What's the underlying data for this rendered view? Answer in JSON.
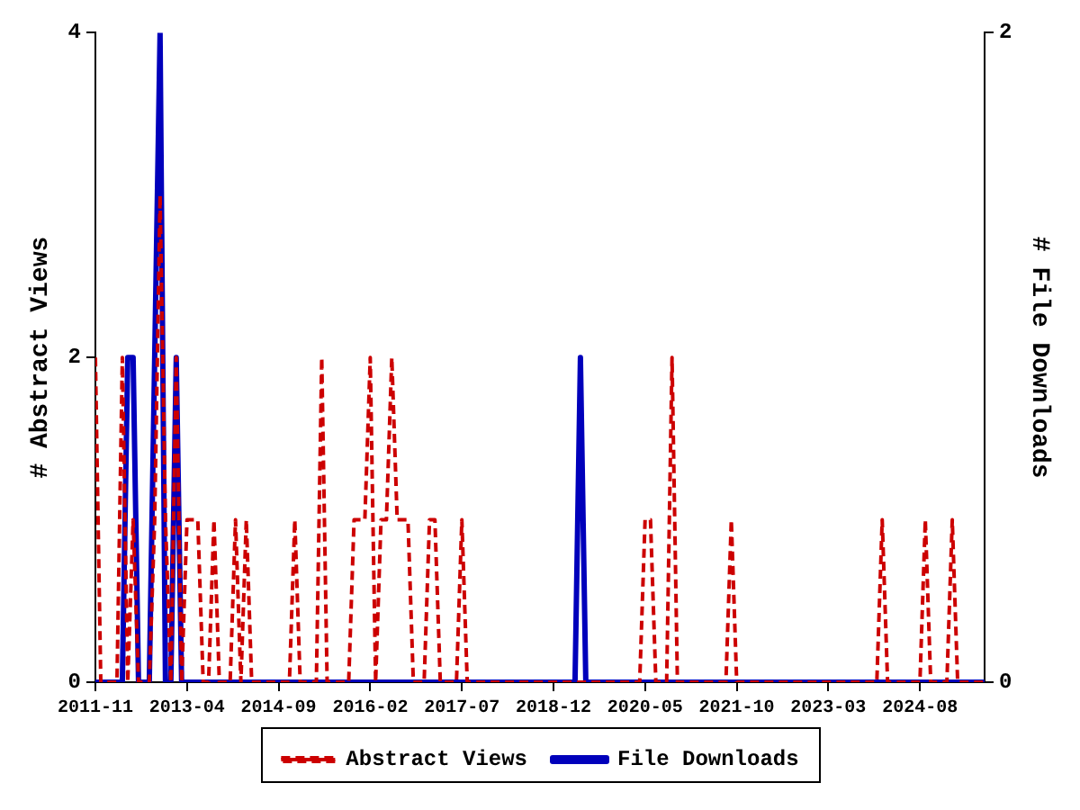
{
  "chart_data": {
    "type": "line",
    "xlabel": null,
    "ylabel": "# Abstract Views",
    "y2label": "# File Downloads",
    "x": [
      "2011-11",
      "2011-12",
      "2012-01",
      "2012-02",
      "2012-03",
      "2012-04",
      "2012-05",
      "2012-06",
      "2012-07",
      "2012-08",
      "2012-09",
      "2012-10",
      "2012-11",
      "2012-12",
      "2013-01",
      "2013-02",
      "2013-03",
      "2013-04",
      "2013-05",
      "2013-06",
      "2013-07",
      "2013-08",
      "2013-09",
      "2013-10",
      "2013-11",
      "2013-12",
      "2014-01",
      "2014-02",
      "2014-03",
      "2014-04",
      "2014-05",
      "2014-06",
      "2014-07",
      "2014-08",
      "2014-09",
      "2014-10",
      "2014-11",
      "2014-12",
      "2015-01",
      "2015-02",
      "2015-03",
      "2015-04",
      "2015-05",
      "2015-06",
      "2015-07",
      "2015-08",
      "2015-09",
      "2015-10",
      "2015-11",
      "2015-12",
      "2016-01",
      "2016-02",
      "2016-03",
      "2016-04",
      "2016-05",
      "2016-06",
      "2016-07",
      "2016-08",
      "2016-09",
      "2016-10",
      "2016-11",
      "2016-12",
      "2017-01",
      "2017-02",
      "2017-03",
      "2017-04",
      "2017-05",
      "2017-06",
      "2017-07",
      "2017-08",
      "2017-09",
      "2017-10",
      "2017-11",
      "2017-12",
      "2018-01",
      "2018-02",
      "2018-03",
      "2018-04",
      "2018-05",
      "2018-06",
      "2018-07",
      "2018-08",
      "2018-09",
      "2018-10",
      "2018-11",
      "2018-12",
      "2019-01",
      "2019-02",
      "2019-03",
      "2019-04",
      "2019-05",
      "2019-06",
      "2019-07",
      "2019-08",
      "2019-09",
      "2019-10",
      "2019-11",
      "2019-12",
      "2020-01",
      "2020-02",
      "2020-03",
      "2020-04",
      "2020-05",
      "2020-06",
      "2020-07",
      "2020-08",
      "2020-09",
      "2020-10",
      "2020-11",
      "2020-12",
      "2021-01",
      "2021-02",
      "2021-03",
      "2021-04",
      "2021-05",
      "2021-06",
      "2021-07",
      "2021-08",
      "2021-09",
      "2021-10",
      "2021-11",
      "2021-12",
      "2022-01",
      "2022-02",
      "2022-03",
      "2022-04",
      "2022-05",
      "2022-06",
      "2022-07",
      "2022-08",
      "2022-09",
      "2022-10",
      "2022-11",
      "2022-12",
      "2023-01",
      "2023-02",
      "2023-03",
      "2023-04",
      "2023-05",
      "2023-06",
      "2023-07",
      "2023-08",
      "2023-09",
      "2023-10",
      "2023-11",
      "2023-12",
      "2024-01",
      "2024-02",
      "2024-03",
      "2024-04",
      "2024-05",
      "2024-06",
      "2024-07",
      "2024-08",
      "2024-09",
      "2024-10",
      "2024-11",
      "2024-12",
      "2025-01",
      "2025-02",
      "2025-03",
      "2025-04",
      "2025-05",
      "2025-06",
      "2025-07",
      "2025-08"
    ],
    "series": [
      {
        "name": "Abstract Views",
        "color": "#cc0000",
        "line_style": "dashed",
        "values": [
          2,
          0,
          0,
          0,
          0,
          2,
          0,
          1,
          0,
          0,
          0,
          1,
          3,
          1,
          0,
          2,
          0,
          1,
          1,
          1,
          0,
          0,
          1,
          0,
          0,
          0,
          1,
          0,
          1,
          0,
          0,
          0,
          0,
          0,
          0,
          0,
          0,
          1,
          0,
          0,
          0,
          0,
          2,
          0,
          0,
          0,
          0,
          0,
          1,
          1,
          1,
          2,
          0,
          1,
          1,
          2,
          1,
          1,
          1,
          0,
          0,
          0,
          1,
          1,
          0,
          0,
          0,
          0,
          1,
          0,
          0,
          0,
          0,
          0,
          0,
          0,
          0,
          0,
          0,
          0,
          0,
          0,
          0,
          0,
          0,
          0,
          0,
          0,
          0,
          0,
          0,
          0,
          0,
          0,
          0,
          0,
          0,
          0,
          0,
          0,
          0,
          0,
          1,
          1,
          0,
          0,
          0,
          2,
          0,
          0,
          0,
          0,
          0,
          0,
          0,
          0,
          0,
          0,
          1,
          0,
          0,
          0,
          0,
          0,
          0,
          0,
          0,
          0,
          0,
          0,
          0,
          0,
          0,
          0,
          0,
          0,
          0,
          0,
          0,
          0,
          0,
          0,
          0,
          0,
          0,
          0,
          1,
          0,
          0,
          0,
          0,
          0,
          0,
          0,
          1,
          0,
          0,
          0,
          0,
          1,
          0,
          0,
          0,
          0,
          0,
          0
        ]
      },
      {
        "name": "File Downloads",
        "color": "#0000bb",
        "line_style": "solid",
        "axis": "y2",
        "values": [
          0,
          0,
          0,
          0,
          0,
          0,
          1,
          1,
          0,
          0,
          0,
          1,
          2,
          0,
          0,
          1,
          0,
          0,
          0,
          0,
          0,
          0,
          0,
          0,
          0,
          0,
          0,
          0,
          0,
          0,
          0,
          0,
          0,
          0,
          0,
          0,
          0,
          0,
          0,
          0,
          0,
          0,
          0,
          0,
          0,
          0,
          0,
          0,
          0,
          0,
          0,
          0,
          0,
          0,
          0,
          0,
          0,
          0,
          0,
          0,
          0,
          0,
          0,
          0,
          0,
          0,
          0,
          0,
          0,
          0,
          0,
          0,
          0,
          0,
          0,
          0,
          0,
          0,
          0,
          0,
          0,
          0,
          0,
          0,
          0,
          0,
          0,
          0,
          0,
          0,
          1,
          0,
          0,
          0,
          0,
          0,
          0,
          0,
          0,
          0,
          0,
          0,
          0,
          0,
          0,
          0,
          0,
          0,
          0,
          0,
          0,
          0,
          0,
          0,
          0,
          0,
          0,
          0,
          0,
          0,
          0,
          0,
          0,
          0,
          0,
          0,
          0,
          0,
          0,
          0,
          0,
          0,
          0,
          0,
          0,
          0,
          0,
          0,
          0,
          0,
          0,
          0,
          0,
          0,
          0,
          0,
          0,
          0,
          0,
          0,
          0,
          0,
          0,
          0,
          0,
          0,
          0,
          0,
          0,
          0,
          0,
          0,
          0,
          0,
          0,
          0
        ]
      }
    ],
    "xlim": [
      "2011-11",
      "2025-08"
    ],
    "xticks": [
      "2011-11",
      "2013-04",
      "2014-09",
      "2016-02",
      "2017-07",
      "2018-12",
      "2020-05",
      "2021-10",
      "2023-03",
      "2024-08"
    ],
    "ylim": [
      0,
      4
    ],
    "yticks": [
      0,
      2,
      4
    ],
    "y2lim": [
      0,
      2
    ],
    "y2ticks": [
      0,
      2
    ],
    "grid": false,
    "legend": "bottom",
    "marker": "none"
  }
}
